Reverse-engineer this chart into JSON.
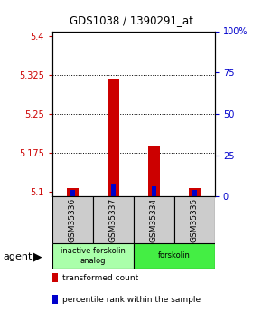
{
  "title": "GDS1038 / 1390291_at",
  "samples": [
    "GSM35336",
    "GSM35337",
    "GSM35334",
    "GSM35335"
  ],
  "red_values": [
    5.107,
    5.318,
    5.188,
    5.107
  ],
  "blue_values": [
    5.103,
    5.114,
    5.109,
    5.103
  ],
  "ylim_left": [
    5.09,
    5.41
  ],
  "ylim_right": [
    0,
    100
  ],
  "yticks_left": [
    5.1,
    5.175,
    5.25,
    5.325,
    5.4
  ],
  "ytick_labels_left": [
    "5.1",
    "5.175",
    "5.25",
    "5.325",
    "5.4"
  ],
  "yticks_right": [
    0,
    25,
    50,
    75,
    100
  ],
  "ytick_labels_right": [
    "0",
    "25",
    "50",
    "75",
    "100%"
  ],
  "agent_label": "agent",
  "legend_red": "transformed count",
  "legend_blue": "percentile rank within the sample",
  "bar_width": 0.3,
  "blue_bar_width": 0.12,
  "sample_box_color": "#cccccc",
  "red_color": "#cc0000",
  "blue_color": "#0000cc",
  "group1_color": "#aaffaa",
  "group2_color": "#44ee44",
  "group1_label": "inactive forskolin\nanalog",
  "group2_label": "forskolin"
}
